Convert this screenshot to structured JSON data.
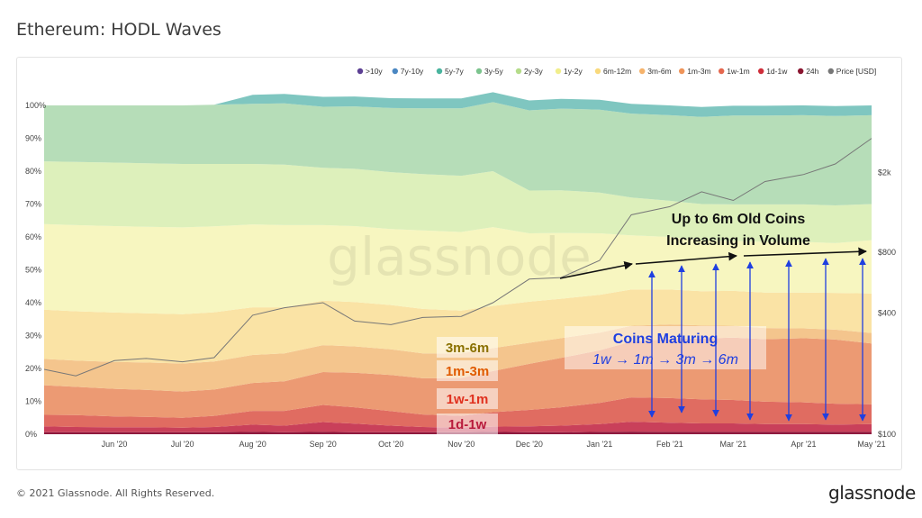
{
  "title": "Ethereum: HODL Waves",
  "footer": {
    "copyright": "© 2021 Glassnode. All Rights Reserved.",
    "brand": "glassnode"
  },
  "watermark": "glassnode",
  "chart_data": {
    "type": "area",
    "stacking": "percent",
    "x": [
      "2020-05-01",
      "2020-05-15",
      "2020-06-01",
      "2020-06-15",
      "2020-07-01",
      "2020-07-15",
      "2020-08-01",
      "2020-08-15",
      "2020-09-01",
      "2020-09-15",
      "2020-10-01",
      "2020-10-15",
      "2020-11-01",
      "2020-11-15",
      "2020-12-01",
      "2020-12-15",
      "2021-01-01",
      "2021-01-15",
      "2021-02-01",
      "2021-02-15",
      "2021-03-01",
      "2021-03-15",
      "2021-04-01",
      "2021-04-15",
      "2021-05-01"
    ],
    "xticks": [
      "Jun '20",
      "Jul '20",
      "Aug '20",
      "Sep '20",
      "Oct '20",
      "Nov '20",
      "Dec '20",
      "Jan '21",
      "Feb '21",
      "Mar '21",
      "Apr '21",
      "May '21"
    ],
    "xtick_dates": [
      "2020-06-01",
      "2020-07-01",
      "2020-08-01",
      "2020-09-01",
      "2020-10-01",
      "2020-11-01",
      "2020-12-01",
      "2021-01-01",
      "2021-02-01",
      "2021-03-01",
      "2021-04-01",
      "2021-05-01"
    ],
    "yticks_left": [
      "0%",
      "10%",
      "20%",
      "30%",
      "40%",
      "50%",
      "60%",
      "70%",
      "80%",
      "90%",
      "100%"
    ],
    "ylim": [
      0,
      100
    ],
    "y2ticks": [
      "$100",
      "$400",
      "$800",
      "$2k"
    ],
    "y2tick_values": [
      100,
      400,
      800,
      2000
    ],
    "y2lim": [
      100,
      4300
    ],
    "y2scale": "log",
    "legend_position": "top-right",
    "grid": false,
    "series": [
      {
        "name": "24h",
        "color": "#8e1a3e",
        "values": [
          0.6,
          0.6,
          0.6,
          0.6,
          0.6,
          0.6,
          0.7,
          0.6,
          0.7,
          0.6,
          0.6,
          0.6,
          0.6,
          0.7,
          0.6,
          0.6,
          0.7,
          0.8,
          0.7,
          0.7,
          0.7,
          0.7,
          0.7,
          0.7,
          0.7
        ]
      },
      {
        "name": "1d-1w",
        "color": "#c9405a",
        "values": [
          1.8,
          1.6,
          1.5,
          1.5,
          1.4,
          1.6,
          2.2,
          2.0,
          3.0,
          2.6,
          2.0,
          1.6,
          1.4,
          1.6,
          1.8,
          2.0,
          2.4,
          3.0,
          2.8,
          2.6,
          2.6,
          2.4,
          2.4,
          2.2,
          2.4
        ]
      },
      {
        "name": "1w-1m",
        "color": "#e06c61",
        "values": [
          3.5,
          3.6,
          3.3,
          3.2,
          3.0,
          3.4,
          4.2,
          4.5,
          5.2,
          5.0,
          4.4,
          3.8,
          3.6,
          4.4,
          5.0,
          5.6,
          6.4,
          7.4,
          7.5,
          7.3,
          7.1,
          6.8,
          6.6,
          6.4,
          6.0
        ]
      },
      {
        "name": "1m-3m",
        "color": "#ec9a73",
        "values": [
          9.0,
          8.6,
          8.4,
          8.2,
          8.0,
          8.0,
          8.5,
          9.0,
          10.0,
          10.5,
          11.0,
          11.0,
          11.5,
          12.5,
          14.0,
          15.0,
          16.0,
          17.0,
          18.0,
          18.5,
          19.0,
          19.0,
          19.5,
          19.5,
          18.5
        ]
      },
      {
        "name": "3m-6m",
        "color": "#f4c58d",
        "values": [
          8.0,
          8.0,
          8.2,
          8.3,
          8.5,
          8.5,
          8.5,
          8.5,
          8.2,
          8.0,
          7.8,
          7.6,
          7.5,
          7.0,
          6.4,
          6.0,
          5.4,
          4.8,
          4.4,
          4.0,
          3.6,
          3.4,
          3.0,
          3.0,
          3.2
        ]
      },
      {
        "name": "6m-12m",
        "color": "#fae3a5",
        "values": [
          15.0,
          15.0,
          15.0,
          15.0,
          15.0,
          15.0,
          14.5,
          14.0,
          13.5,
          13.5,
          13.5,
          13.5,
          13.0,
          12.8,
          12.5,
          12.0,
          11.5,
          11.0,
          10.6,
          10.4,
          10.6,
          10.8,
          10.9,
          11.2,
          12.0
        ]
      },
      {
        "name": "1y-2y",
        "color": "#f7f6c0",
        "values": [
          26.0,
          26.2,
          26.3,
          26.3,
          26.4,
          26.1,
          25.2,
          25.0,
          23.0,
          23.1,
          23.1,
          23.9,
          23.9,
          24.0,
          20.8,
          20.0,
          18.7,
          16.5,
          16.0,
          15.5,
          15.2,
          15.4,
          15.4,
          15.1,
          16.2
        ]
      },
      {
        "name": "2y-3y",
        "color": "#ddf0bb",
        "values": [
          19.1,
          19.2,
          19.3,
          19.3,
          19.3,
          19.0,
          18.4,
          18.4,
          17.4,
          17.4,
          17.3,
          17.1,
          17.1,
          17.0,
          13.0,
          13.0,
          12.4,
          11.5,
          11.0,
          11.0,
          11.1,
          11.4,
          11.4,
          11.5,
          11.0
        ]
      },
      {
        "name": "3y-5y",
        "color": "#b6ddb8",
        "values": [
          17.0,
          17.2,
          17.4,
          17.6,
          17.8,
          18.0,
          18.3,
          18.6,
          18.6,
          19.0,
          19.5,
          20.0,
          20.5,
          21.0,
          24.4,
          24.8,
          25.2,
          25.5,
          26.0,
          26.5,
          27.0,
          27.0,
          27.1,
          27.2,
          27.0
        ]
      },
      {
        "name": "5y-7y",
        "color": "#7fc6c0",
        "values": [
          0,
          0,
          0,
          0,
          0,
          0,
          2.7,
          2.9,
          3.0,
          3.0,
          3.0,
          3.0,
          3.0,
          3.0,
          3.0,
          3.0,
          3.0,
          3.0,
          3.0,
          3.0,
          3.0,
          3.0,
          3.0,
          3.0,
          3.0
        ]
      },
      {
        "name": "7y-10y",
        "color": "#4a87c2",
        "values": [
          0,
          0,
          0,
          0,
          0,
          0,
          0,
          0,
          0,
          0,
          0,
          0,
          0,
          0,
          0,
          0,
          0,
          0,
          0,
          0,
          0,
          0,
          0,
          0,
          0
        ]
      },
      {
        "name": ">10y",
        "color": "#5c3f93",
        "values": [
          0,
          0,
          0,
          0,
          0,
          0,
          0,
          0,
          0,
          0,
          0,
          0,
          0,
          0,
          0,
          0,
          0,
          0,
          0,
          0,
          0,
          0,
          0,
          0,
          0
        ]
      }
    ],
    "price": {
      "name": "Price [USD]",
      "color": "#777777",
      "values": [
        210,
        195,
        232,
        238,
        229,
        240,
        390,
        425,
        450,
        365,
        350,
        380,
        385,
        450,
        590,
        600,
        730,
        1230,
        1350,
        1600,
        1450,
        1800,
        1950,
        2200,
        2950
      ]
    },
    "legend": [
      {
        "label": ">10y",
        "color": "#5c3f93"
      },
      {
        "label": "7y-10y",
        "color": "#4a87c2"
      },
      {
        "label": "5y-7y",
        "color": "#49b49e"
      },
      {
        "label": "3y-5y",
        "color": "#7cc48e"
      },
      {
        "label": "2y-3y",
        "color": "#b5dc8a"
      },
      {
        "label": "1y-2y",
        "color": "#f1ee8c"
      },
      {
        "label": "6m-12m",
        "color": "#f9d97c"
      },
      {
        "label": "3m-6m",
        "color": "#f6b36b"
      },
      {
        "label": "1m-3m",
        "color": "#ef9459"
      },
      {
        "label": "1w-1m",
        "color": "#e5674e"
      },
      {
        "label": "1d-1w",
        "color": "#cf2e3a"
      },
      {
        "label": "24h",
        "color": "#8a1530"
      },
      {
        "label": "Price [USD]",
        "color": "#777777"
      }
    ],
    "annotations": {
      "band_labels": [
        {
          "text": "3m-6m",
          "color": "#8a7000"
        },
        {
          "text": "1m-3m",
          "color": "#e05a00"
        },
        {
          "text": "1w-1m",
          "color": "#e0301e"
        },
        {
          "text": "1d-1w",
          "color": "#b81a3c"
        }
      ],
      "headline": [
        "Up to 6m Old Coins",
        "Increasing in Volume"
      ],
      "maturing_title": "Coins Maturing",
      "maturing_steps": "1w → 1m → 3m → 6m"
    }
  }
}
